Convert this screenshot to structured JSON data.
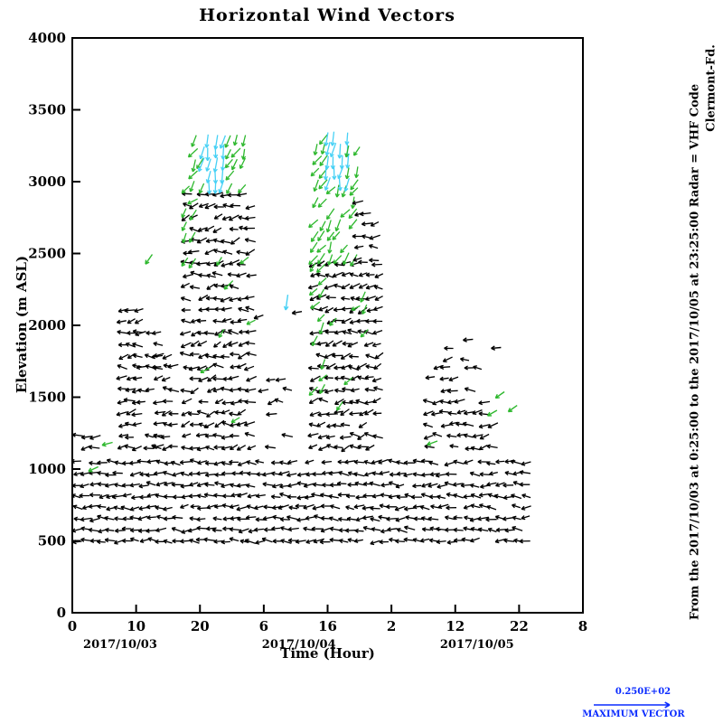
{
  "chart_data": {
    "type": "scatter",
    "subtype": "wind-vector-field",
    "title": "Horizontal Wind Vectors",
    "xlabel": "Time (Hour)",
    "ylabel": "Elevation (m ASL)",
    "xlim": [
      0,
      80
    ],
    "ylim": [
      0,
      4000
    ],
    "x_ticks": [
      0,
      10,
      20,
      30,
      40,
      50,
      60,
      70,
      80
    ],
    "x_tick_labels": [
      "0",
      "10",
      "20",
      "6",
      "16",
      "2",
      "12",
      "22",
      "8"
    ],
    "y_ticks": [
      0,
      500,
      1000,
      1500,
      2000,
      2500,
      3000,
      3500,
      4000
    ],
    "date_labels": [
      {
        "label": "2017/10/03",
        "center_hour": 7.5
      },
      {
        "label": "2017/10/04",
        "center_hour": 35.5
      },
      {
        "label": "2017/10/05",
        "center_hour": 63.4
      }
    ],
    "colors": {
      "black": "#000000",
      "green": "#2eb82e",
      "cyan": "#47d1f5",
      "blue": "#0a2bff"
    },
    "max_vector": {
      "value": "0.250E+02",
      "label": "MAXIMUM VECTOR"
    },
    "regions": [
      {
        "name": "base-band",
        "t": [
          0.8,
          71.0
        ],
        "z": [
          500,
          1110
        ],
        "dt": 1.3,
        "dz": 78,
        "p": 0.93,
        "color": "black",
        "angle": 180,
        "jitter": 20,
        "len": 11
      },
      {
        "name": "left-bump",
        "t": [
          0.8,
          3.6
        ],
        "z": [
          1150,
          1240
        ],
        "dt": 1.3,
        "dz": 80,
        "p": 0.5,
        "color": "black",
        "angle": 185,
        "jitter": 20,
        "len": 11
      },
      {
        "name": "tower-a",
        "t": [
          7.9,
          10.4
        ],
        "z": [
          1150,
          2120
        ],
        "dt": 1.2,
        "dz": 80,
        "p": 0.85,
        "color": "black",
        "angle": 185,
        "jitter": 28,
        "len": 11
      },
      {
        "name": "tower-a2-sparse",
        "t": [
          10.9,
          13.3
        ],
        "z": [
          1150,
          2050
        ],
        "dt": 1.2,
        "dz": 80,
        "p": 0.38,
        "color": "black",
        "angle": 185,
        "jitter": 28,
        "len": 11
      },
      {
        "name": "tower-b",
        "t": [
          13.6,
          16.4
        ],
        "z": [
          1150,
          1810
        ],
        "dt": 1.2,
        "dz": 80,
        "p": 0.85,
        "color": "black",
        "angle": 185,
        "jitter": 28,
        "len": 11
      },
      {
        "name": "tower-c-black",
        "t": [
          17.9,
          28.2
        ],
        "z": [
          1150,
          2960
        ],
        "dt": 1.25,
        "dz": 80,
        "p": 0.88,
        "color": "black",
        "angle": 188,
        "jitter": 30,
        "len": 11
      },
      {
        "name": "tower-c-green-fringe",
        "t": [
          17.7,
          19.1
        ],
        "z": [
          2350,
          2950
        ],
        "dt": 1.2,
        "dz": 85,
        "p": 0.5,
        "color": "green",
        "angle": 230,
        "jitter": 25,
        "len": 12
      },
      {
        "name": "tower-c-green-top-left",
        "t": [
          19.0,
          20.2
        ],
        "z": [
          2960,
          3330
        ],
        "dt": 1.1,
        "dz": 80,
        "p": 0.8,
        "color": "green",
        "angle": 238,
        "jitter": 22,
        "len": 13
      },
      {
        "name": "tower-c-cyan",
        "t": [
          20.2,
          24.5
        ],
        "z": [
          2960,
          3330
        ],
        "dt": 1.1,
        "dz": 80,
        "p": 0.85,
        "color": "cyan",
        "angle": 260,
        "jitter": 14,
        "len": 15
      },
      {
        "name": "tower-c-green-top-right",
        "t": [
          24.5,
          27.7
        ],
        "z": [
          2960,
          3330
        ],
        "dt": 1.1,
        "dz": 80,
        "p": 0.75,
        "color": "green",
        "angle": 240,
        "jitter": 22,
        "len": 13
      },
      {
        "name": "tower-c-green-scatter",
        "t": [
          18.2,
          28.3
        ],
        "z": [
          1350,
          2750
        ],
        "dt": 1.25,
        "dz": 85,
        "p": 0.08,
        "color": "green",
        "angle": 222,
        "jitter": 25,
        "len": 12
      },
      {
        "name": "mid-gap-sparse",
        "t": [
          28.6,
          34.4
        ],
        "z": [
          1150,
          1630
        ],
        "dt": 1.3,
        "dz": 80,
        "p": 0.3,
        "color": "black",
        "angle": 185,
        "jitter": 25,
        "len": 11
      },
      {
        "name": "tower-d-black",
        "t": [
          37.9,
          48.2
        ],
        "z": [
          1150,
          2460
        ],
        "dt": 1.25,
        "dz": 80,
        "p": 0.88,
        "color": "black",
        "angle": 188,
        "jitter": 30,
        "len": 11
      },
      {
        "name": "tower-d-green-left",
        "t": [
          37.9,
          39.6
        ],
        "z": [
          1550,
          2450
        ],
        "dt": 1.2,
        "dz": 85,
        "p": 0.45,
        "color": "green",
        "angle": 232,
        "jitter": 22,
        "len": 12
      },
      {
        "name": "tower-d-green-mid",
        "t": [
          37.9,
          44.8
        ],
        "z": [
          2460,
          2980
        ],
        "dt": 1.2,
        "dz": 80,
        "p": 0.78,
        "color": "green",
        "angle": 240,
        "jitter": 22,
        "len": 13
      },
      {
        "name": "tower-d-black-right-top",
        "t": [
          44.8,
          48.2
        ],
        "z": [
          2460,
          2900
        ],
        "dt": 1.25,
        "dz": 80,
        "p": 0.7,
        "color": "black",
        "angle": 190,
        "jitter": 28,
        "len": 11
      },
      {
        "name": "tower-d-green-top-left",
        "t": [
          38.2,
          39.9
        ],
        "z": [
          2980,
          3330
        ],
        "dt": 1.1,
        "dz": 80,
        "p": 0.78,
        "color": "green",
        "angle": 240,
        "jitter": 20,
        "len": 13
      },
      {
        "name": "tower-d-cyan",
        "t": [
          39.9,
          43.3
        ],
        "z": [
          2980,
          3330
        ],
        "dt": 1.1,
        "dz": 80,
        "p": 0.82,
        "color": "cyan",
        "angle": 262,
        "jitter": 13,
        "len": 15
      },
      {
        "name": "tower-d-green-top-right",
        "t": [
          43.3,
          44.6
        ],
        "z": [
          2980,
          3330
        ],
        "dt": 1.1,
        "dz": 80,
        "p": 0.7,
        "color": "green",
        "angle": 242,
        "jitter": 20,
        "len": 13
      },
      {
        "name": "tower-d-green-scatter",
        "t": [
          38.2,
          48.0
        ],
        "z": [
          1350,
          2400
        ],
        "dt": 1.25,
        "dz": 85,
        "p": 0.06,
        "color": "green",
        "angle": 222,
        "jitter": 25,
        "len": 12
      },
      {
        "name": "region-e",
        "t": [
          55.9,
          64.5
        ],
        "z": [
          1150,
          1760
        ],
        "dt": 1.25,
        "dz": 80,
        "p": 0.7,
        "color": "black",
        "angle": 185,
        "jitter": 25,
        "len": 11
      },
      {
        "name": "region-e-top",
        "t": [
          58.8,
          61.6
        ],
        "z": [
          1760,
          1890
        ],
        "dt": 1.25,
        "dz": 80,
        "p": 0.55,
        "color": "black",
        "angle": 185,
        "jitter": 25,
        "len": 11
      },
      {
        "name": "region-e-right",
        "t": [
          64.5,
          66.7
        ],
        "z": [
          1150,
          1520
        ],
        "dt": 1.25,
        "dz": 80,
        "p": 0.5,
        "color": "black",
        "angle": 185,
        "jitter": 25,
        "len": 11
      }
    ],
    "points": [
      {
        "t": 3.3,
        "z": 1000,
        "color": "green",
        "angle": 205,
        "len": 12
      },
      {
        "t": 5.5,
        "z": 1176,
        "color": "green",
        "angle": 195,
        "len": 12
      },
      {
        "t": 12.0,
        "z": 2460,
        "color": "green",
        "angle": 235,
        "len": 13
      },
      {
        "t": 33.6,
        "z": 2160,
        "color": "cyan",
        "angle": 262,
        "len": 17
      },
      {
        "t": 29.2,
        "z": 2060,
        "color": "black",
        "angle": 200,
        "len": 11
      },
      {
        "t": 35.2,
        "z": 2090,
        "color": "black",
        "angle": 190,
        "len": 11
      },
      {
        "t": 56.4,
        "z": 1182,
        "color": "green",
        "angle": 200,
        "len": 12
      },
      {
        "t": 65.8,
        "z": 1390,
        "color": "green",
        "angle": 210,
        "len": 12
      },
      {
        "t": 67.0,
        "z": 1516,
        "color": "green",
        "angle": 215,
        "len": 12
      },
      {
        "t": 66.4,
        "z": 1843,
        "color": "black",
        "angle": 185,
        "len": 11
      },
      {
        "t": 69.0,
        "z": 1421,
        "color": "green",
        "angle": 215,
        "len": 12
      },
      {
        "t": 62.0,
        "z": 1900,
        "color": "black",
        "angle": 185,
        "len": 11
      }
    ]
  },
  "annotations": {
    "line1": "From the 2017/10/03 at  0:25:00 to the 2017/10/05 at 23:25:00 Radar = VHF Code",
    "line2": "Clermont-Fd."
  }
}
